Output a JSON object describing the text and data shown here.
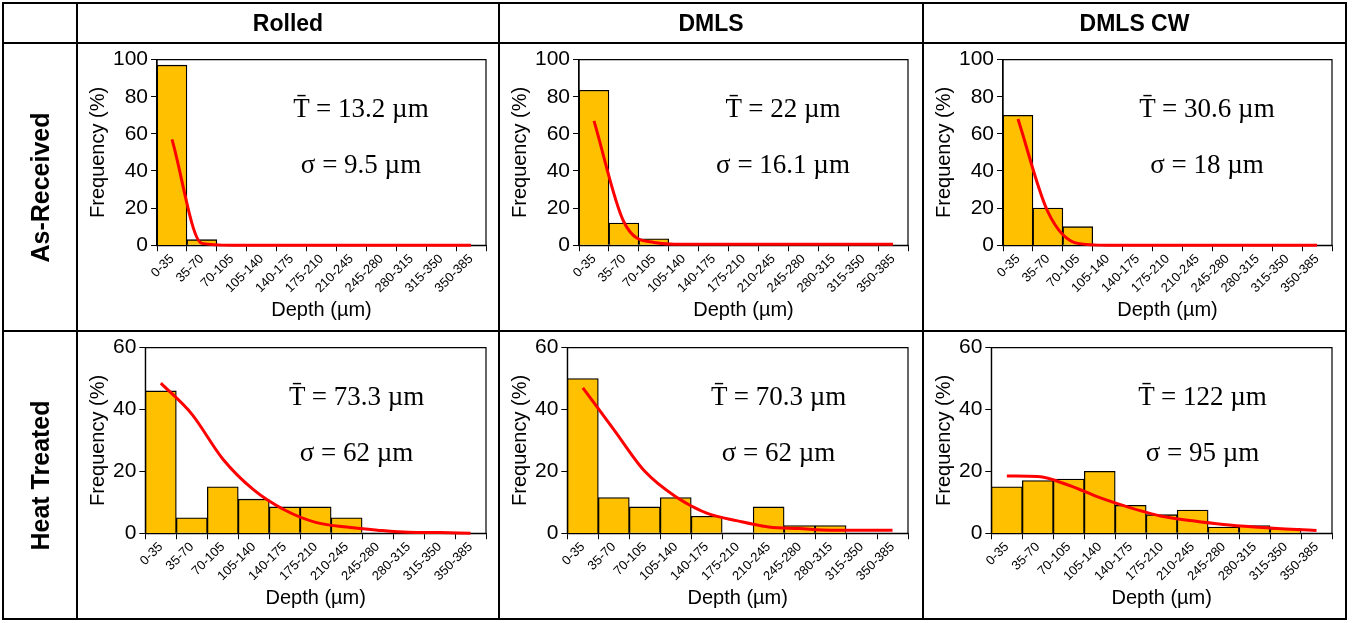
{
  "chart_data": [
    {
      "type": "bar",
      "title": "Rolled",
      "subtitle": "As-Received",
      "xlabel": "Depth (µm)",
      "ylabel": "Frequency (%)",
      "categories": [
        "0-35",
        "35-70",
        "70-105",
        "105-140",
        "140-175",
        "175-210",
        "210-245",
        "245-280",
        "280-315",
        "315-350",
        "350-385"
      ],
      "series": [
        {
          "color": "#ffc000",
          "values": [
            97,
            3,
            0,
            0,
            0,
            0,
            0,
            0,
            0,
            0,
            0
          ]
        },
        {
          "type": "line",
          "color": "#ff0000",
          "values": [
            57,
            1,
            0,
            0,
            0,
            0,
            0,
            0,
            0,
            0,
            0
          ]
        }
      ],
      "ylim": [
        0,
        100
      ],
      "yticks": [
        0,
        20,
        40,
        60,
        80,
        100
      ],
      "annotations": [
        "T̄ = 13.2 µm",
        "σ = 9.5 µm"
      ]
    },
    {
      "type": "bar",
      "title": "DMLS",
      "xlabel": "Depth (µm)",
      "ylabel": "Frequency (%)",
      "categories": [
        "0-35",
        "35-70",
        "70-105",
        "105-140",
        "140-175",
        "175-210",
        "210-245",
        "245-280",
        "280-315",
        "315-350",
        "350-385"
      ],
      "series": [
        {
          "color": "#ffc000",
          "values": [
            83.5,
            12,
            3.5,
            0,
            0,
            0,
            0,
            0,
            0,
            0,
            0
          ]
        },
        {
          "type": "line",
          "color": "#ff0000",
          "values": [
            67,
            12.5,
            1.5,
            0.5,
            0.5,
            0.5,
            0.5,
            0.5,
            0.5,
            0.5,
            0.5
          ]
        }
      ],
      "ylim": [
        0,
        100
      ],
      "yticks": [
        0,
        20,
        40,
        60,
        80,
        100
      ],
      "annotations": [
        "T̄ = 22 µm",
        "σ = 16.1 µm"
      ]
    },
    {
      "type": "bar",
      "title": "DMLS CW",
      "xlabel": "Depth (µm)",
      "ylabel": "Frequency (%)",
      "categories": [
        "0-35",
        "35-70",
        "70-105",
        "105-140",
        "140-175",
        "175-210",
        "210-245",
        "245-280",
        "280-315",
        "315-350",
        "350-385"
      ],
      "series": [
        {
          "color": "#ffc000",
          "values": [
            70,
            20,
            10,
            0,
            0,
            0,
            0,
            0,
            0,
            0,
            0
          ]
        },
        {
          "type": "line",
          "color": "#ff0000",
          "values": [
            68,
            18,
            1,
            0,
            0,
            0,
            0,
            0,
            0,
            0,
            0
          ]
        }
      ],
      "ylim": [
        0,
        100
      ],
      "yticks": [
        0,
        20,
        40,
        60,
        80,
        100
      ],
      "annotations": [
        "T̄ = 30.6 µm",
        "σ = 18 µm"
      ]
    },
    {
      "type": "bar",
      "subtitle": "Heat Treated",
      "xlabel": "Depth (µm)",
      "ylabel": "Frequency (%)",
      "categories": [
        "0-35",
        "35-70",
        "70-105",
        "105-140",
        "140-175",
        "175-210",
        "210-245",
        "245-280",
        "280-315",
        "315-350",
        "350-385"
      ],
      "series": [
        {
          "color": "#ffc000",
          "values": [
            46,
            5,
            15,
            11,
            8.5,
            8.5,
            5,
            0,
            null,
            0,
            0
          ]
        },
        {
          "type": "line",
          "color": "#ff0000",
          "values": [
            48.5,
            38.5,
            24,
            14,
            7.5,
            3.5,
            2,
            1,
            0.3,
            0.2,
            0
          ]
        }
      ],
      "ylim": [
        0,
        60
      ],
      "yticks": [
        0,
        20,
        40,
        60
      ],
      "annotations": [
        "T̄ = 73.3 µm",
        "σ = 62 µm"
      ]
    },
    {
      "type": "bar",
      "xlabel": "Depth (µm)",
      "ylabel": "Frequency (%)",
      "categories": [
        "0-35",
        "35-70",
        "70-105",
        "105-140",
        "140-175",
        "175-210",
        "210-245",
        "245-280",
        "280-315",
        "315-350",
        "350-385"
      ],
      "series": [
        {
          "color": "#ffc000",
          "values": [
            50,
            11.5,
            8.5,
            11.5,
            5.5,
            0,
            8.5,
            2.5,
            2.5,
            0,
            0
          ]
        },
        {
          "type": "line",
          "color": "#ff0000",
          "values": [
            47,
            33.5,
            20,
            11.8,
            6.5,
            4,
            2,
            1.5,
            1,
            1,
            1
          ]
        }
      ],
      "ylim": [
        0,
        60
      ],
      "yticks": [
        0,
        20,
        40,
        60
      ],
      "annotations": [
        "T̄ = 70.3 µm",
        "σ = 62 µm"
      ]
    },
    {
      "type": "bar",
      "xlabel": "Depth (µm)",
      "ylabel": "Frequency (%)",
      "categories": [
        "0-35",
        "35-70",
        "70-105",
        "105-140",
        "140-175",
        "175-210",
        "210-245",
        "245-280",
        "280-315",
        "315-350",
        "350-385"
      ],
      "series": [
        {
          "color": "#ffc000",
          "values": [
            15,
            17,
            17.5,
            20,
            9,
            6,
            7.5,
            2,
            2.5,
            1.5,
            0
          ]
        },
        {
          "type": "line",
          "color": "#ff0000",
          "values": [
            18.5,
            18.3,
            15.5,
            11.5,
            8.2,
            5.5,
            4,
            2.8,
            2,
            1.4,
            0.9
          ]
        }
      ],
      "ylim": [
        0,
        60
      ],
      "yticks": [
        0,
        20,
        40,
        60
      ],
      "annotations": [
        "T̄ = 122 µm",
        "σ = 95 µm"
      ]
    }
  ]
}
